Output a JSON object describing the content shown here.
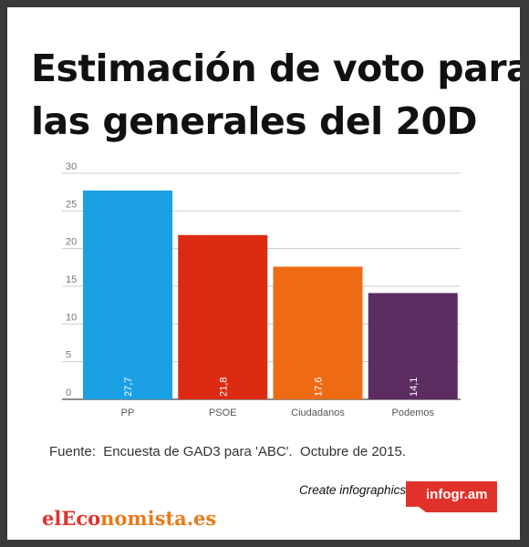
{
  "title_lines": [
    "Estimación de voto para",
    "las generales del 20D"
  ],
  "chart_data": {
    "type": "bar",
    "categories": [
      "PP",
      "PSOE",
      "Ciudadanos",
      "Podemos"
    ],
    "values": [
      27.7,
      21.8,
      17.6,
      14.1
    ],
    "value_labels": [
      "27,7",
      "21,8",
      "17,6",
      "14,1"
    ],
    "colors": [
      "#1aa0e3",
      "#dc2b12",
      "#ee6b14",
      "#5d2d61"
    ],
    "yticks": [
      0,
      5,
      10,
      15,
      20,
      25,
      30
    ],
    "ylim": [
      0,
      30
    ],
    "grid": true
  },
  "source": "Fuente:  Encuesta de GAD3 para 'ABC'.  Octubre de 2015.",
  "branding": {
    "create": "Create infographics",
    "infogram": "infogr.am",
    "logo_part1": "elEco",
    "logo_part2": "nomista.es"
  }
}
